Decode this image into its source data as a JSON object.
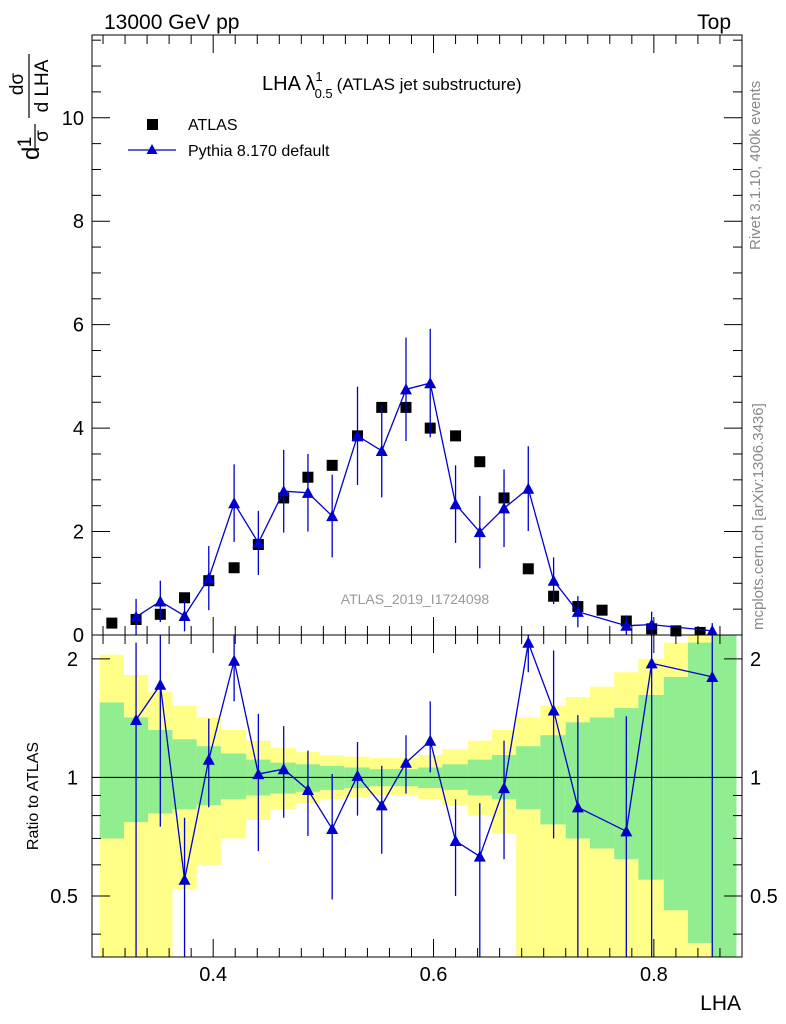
{
  "header": {
    "left": "13000 GeV pp",
    "right": "Top"
  },
  "side_labels": {
    "rivet": "Rivet 3.1.10,  400k events",
    "mcplots": "mcplots.cern.ch [arXiv:1306.3436]"
  },
  "chart_data": [
    {
      "type": "scatter",
      "title": "LHA λ",
      "title_sup": "1",
      "title_sub": "0.5",
      "title_suffix": "(ATLAS jet substructure)",
      "ylabel": "1/σ dσ/d LHA",
      "ylabel_parts": {
        "pre": "d",
        "n1": "1",
        "d1": "σ",
        "n2": "dσ",
        "d2": "d LHA"
      },
      "xlim": [
        0.29,
        0.88
      ],
      "ylim": [
        0,
        11.6
      ],
      "yticks": [
        0,
        2,
        4,
        6,
        8,
        10
      ],
      "yticklabels": [
        "0",
        "2",
        "4",
        "6",
        "8",
        "10"
      ],
      "grid": false,
      "legend_position": "top-left",
      "analysis_label": "ATLAS_2019_I1724098",
      "series": [
        {
          "name": "ATLAS",
          "color": "#000000",
          "marker": "square",
          "x": [
            0.308,
            0.33,
            0.352,
            0.374,
            0.396,
            0.419,
            0.441,
            0.464,
            0.486,
            0.508,
            0.531,
            0.553,
            0.575,
            0.597,
            0.62,
            0.642,
            0.664,
            0.686,
            0.709,
            0.731,
            0.753,
            0.775,
            0.798,
            0.82,
            0.842
          ],
          "values": [
            0.23,
            0.3,
            0.4,
            0.72,
            1.05,
            1.3,
            1.75,
            2.65,
            3.05,
            3.28,
            3.85,
            4.4,
            4.4,
            4.0,
            3.85,
            3.35,
            2.65,
            1.28,
            0.75,
            0.55,
            0.48,
            0.27,
            0.12,
            0.08,
            0.05
          ]
        },
        {
          "name": "Pythia 8.170 default",
          "color": "#0000cc",
          "marker": "triangle",
          "x": [
            0.33,
            0.352,
            0.374,
            0.396,
            0.419,
            0.441,
            0.464,
            0.486,
            0.508,
            0.531,
            0.553,
            0.575,
            0.597,
            0.62,
            0.642,
            0.664,
            0.686,
            0.709,
            0.731,
            0.775,
            0.798,
            0.853
          ],
          "values": [
            0.35,
            0.65,
            0.37,
            1.1,
            2.55,
            1.78,
            2.78,
            2.75,
            2.3,
            3.85,
            3.56,
            4.75,
            4.87,
            2.53,
            1.99,
            2.45,
            2.83,
            1.05,
            0.45,
            0.18,
            0.2,
            0.08
          ],
          "errors": [
            0.35,
            0.4,
            0.3,
            0.62,
            0.75,
            0.62,
            0.8,
            0.75,
            0.8,
            0.95,
            0.9,
            1.0,
            1.05,
            0.75,
            0.7,
            0.75,
            0.82,
            0.45,
            0.3,
            0.2,
            0.25,
            0.15
          ]
        }
      ]
    },
    {
      "type": "scatter",
      "xlabel": "LHA",
      "ylabel": "Ratio to ATLAS",
      "xlim": [
        0.29,
        0.88
      ],
      "ylim": [
        0.35,
        2.3
      ],
      "xticks": [
        0.4,
        0.6,
        0.8
      ],
      "xticklabels": [
        "0.4",
        "0.6",
        "0.8"
      ],
      "yticks": [
        0.5,
        1,
        2
      ],
      "yticklabels": [
        "0.5",
        "1",
        "2"
      ],
      "yscale": "log",
      "reference_line": 1,
      "bands": {
        "edges": [
          0.297,
          0.319,
          0.341,
          0.363,
          0.385,
          0.407,
          0.43,
          0.452,
          0.475,
          0.497,
          0.519,
          0.542,
          0.564,
          0.586,
          0.608,
          0.631,
          0.653,
          0.675,
          0.697,
          0.72,
          0.742,
          0.764,
          0.786,
          0.809,
          0.831,
          0.853,
          0.875
        ],
        "green": {
          "color": "#90ee90",
          "lo": [
            0.7,
            0.77,
            0.81,
            0.83,
            0.85,
            0.88,
            0.9,
            0.91,
            0.92,
            0.93,
            0.94,
            0.95,
            0.95,
            0.94,
            0.93,
            0.9,
            0.88,
            0.83,
            0.76,
            0.7,
            0.66,
            0.62,
            0.55,
            0.46,
            0.38,
            0.35
          ],
          "hi": [
            1.55,
            1.42,
            1.32,
            1.25,
            1.2,
            1.15,
            1.11,
            1.09,
            1.08,
            1.07,
            1.06,
            1.05,
            1.05,
            1.06,
            1.08,
            1.11,
            1.14,
            1.2,
            1.28,
            1.38,
            1.42,
            1.5,
            1.62,
            1.8,
            2.2,
            2.3
          ]
        },
        "yellow": {
          "color": "#ffff88",
          "lo": [
            0.35,
            0.35,
            0.35,
            0.52,
            0.6,
            0.7,
            0.78,
            0.83,
            0.86,
            0.88,
            0.89,
            0.9,
            0.9,
            0.88,
            0.85,
            0.8,
            0.72,
            0.35,
            0.35,
            0.35,
            0.35,
            0.35,
            0.35,
            0.35,
            0.35,
            0.35
          ],
          "hi": [
            2.05,
            1.82,
            1.65,
            1.52,
            1.42,
            1.32,
            1.24,
            1.19,
            1.16,
            1.14,
            1.13,
            1.12,
            1.12,
            1.14,
            1.18,
            1.24,
            1.32,
            1.42,
            1.52,
            1.6,
            1.7,
            1.85,
            2.0,
            2.2,
            2.3,
            2.3
          ]
        }
      },
      "series": [
        {
          "name": "Pythia 8.170 default",
          "color": "#0000cc",
          "marker": "triangle",
          "x": [
            0.33,
            0.352,
            0.374,
            0.396,
            0.419,
            0.441,
            0.464,
            0.486,
            0.508,
            0.531,
            0.553,
            0.575,
            0.597,
            0.62,
            0.642,
            0.664,
            0.686,
            0.709,
            0.731,
            0.775,
            0.798,
            0.853
          ],
          "values": [
            1.4,
            1.72,
            0.55,
            1.11,
            1.98,
            1.02,
            1.05,
            0.93,
            0.74,
            1.01,
            0.85,
            1.09,
            1.24,
            0.69,
            0.63,
            0.94,
            2.2,
            1.48,
            0.84,
            0.73,
            1.95,
            1.8
          ],
          "err_lo": [
            1.05,
            0.97,
            0.2,
            0.27,
            0.42,
            0.37,
            0.26,
            0.22,
            0.25,
            0.21,
            0.21,
            0.18,
            0.21,
            0.19,
            0.28,
            0.32,
            0.35,
            0.78,
            0.49,
            0.38,
            1.6,
            1.45
          ],
          "err_hi": [
            0.8,
            0.6,
            0.24,
            0.3,
            0.4,
            0.43,
            0.3,
            0.24,
            0.28,
            0.22,
            0.22,
            0.19,
            0.32,
            0.19,
            0.23,
            0.3,
            0.1,
            0.62,
            0.6,
            0.7,
            0.35,
            0.5
          ]
        }
      ]
    }
  ]
}
